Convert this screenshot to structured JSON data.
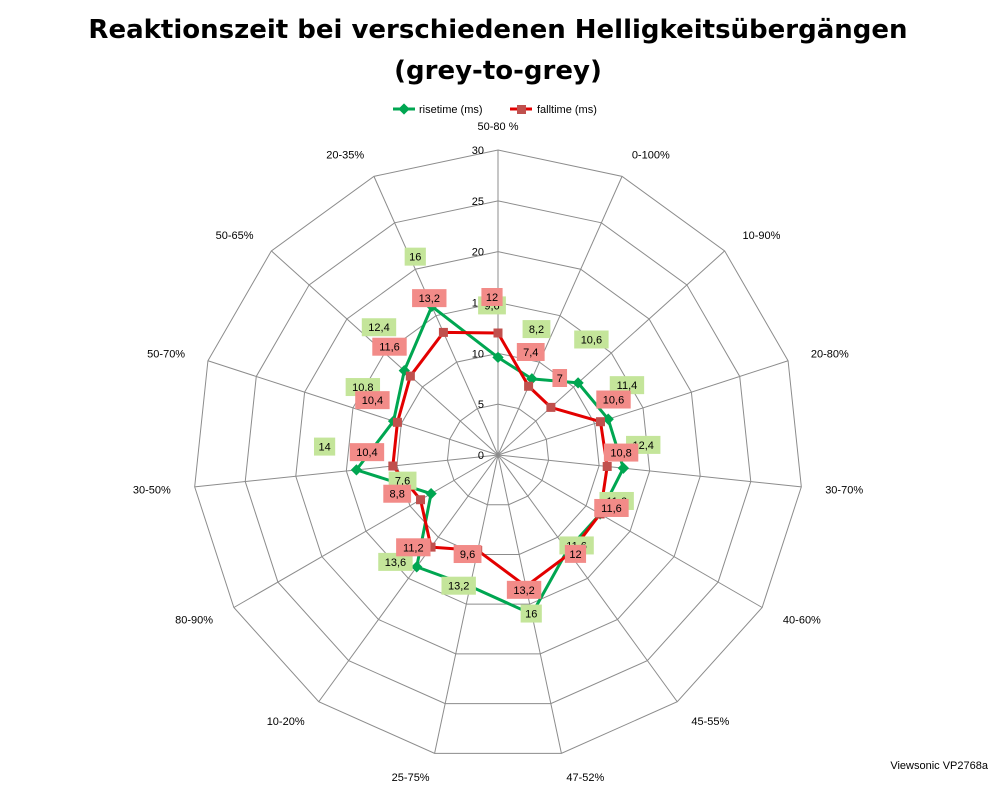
{
  "chart_data": {
    "type": "radar",
    "title": "Reaktionszeit bei verschiedenen Helligkeitsübergängen",
    "subtitle": "(grey-to-grey)",
    "categories": [
      "50-80 %",
      "0-100%",
      "10-90%",
      "20-80%",
      "30-70%",
      "40-60%",
      "45-55%",
      "47-52%",
      "25-75%",
      "10-20%",
      "80-90%",
      "30-50%",
      "50-70%",
      "50-65%",
      "20-35%"
    ],
    "series": [
      {
        "name": "risetime (ms)",
        "color": "#00A651",
        "marker": "diamond",
        "values": [
          9.6,
          8.2,
          10.6,
          11.4,
          12.4,
          11.6,
          11.6,
          16,
          13.2,
          13.6,
          7.6,
          14,
          10.8,
          12.4,
          16
        ]
      },
      {
        "name": "falltime (ms)",
        "color": "#E30000",
        "marker": "square",
        "values": [
          12,
          7.4,
          7,
          10.6,
          10.8,
          11.6,
          12,
          13.2,
          9.6,
          11.2,
          8.8,
          10.4,
          10.4,
          11.6,
          13.2
        ]
      }
    ],
    "rlim": [
      0,
      30
    ],
    "ticks": [
      0,
      5,
      10,
      15,
      20,
      25,
      30
    ],
    "tick_labels": [
      "0",
      "5",
      "10",
      "15",
      "20",
      "25",
      "30"
    ],
    "value_labels": {
      "risetime (ms)": [
        "9,6",
        "8,2",
        "10,6",
        "11,4",
        "12,4",
        "11,6",
        "11,6",
        "16",
        "13,2",
        "13,6",
        "7,6",
        "14",
        "10,8",
        "12,4",
        "16"
      ],
      "falltime (ms)": [
        "12",
        "7,4",
        "7",
        "10,6",
        "10,8",
        "11,6",
        "12",
        "13,2",
        "9,6",
        "11,2",
        "8,8",
        "10,4",
        "10,4",
        "11,6",
        "13,2"
      ]
    },
    "label_fills": {
      "risetime (ms)": "#C4E59A",
      "falltime (ms)": "#F28B88"
    },
    "legend": "top",
    "grid": true
  },
  "credit": "Viewsonic VP2768a"
}
